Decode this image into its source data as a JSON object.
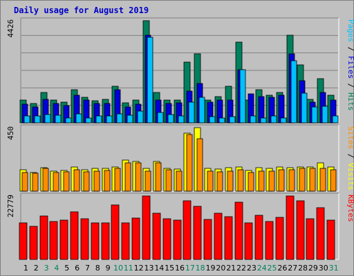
{
  "chart_data": [
    {
      "type": "bar",
      "title": "Daily usage for August 2019",
      "ymax_label": "4426",
      "ylim": [
        0,
        4426
      ],
      "right_label": [
        {
          "text": "Pages",
          "color": "#00c0ff"
        },
        {
          "text": " / ",
          "color": "#000000"
        },
        {
          "text": "Files",
          "color": "#0000d8"
        },
        {
          "text": " / ",
          "color": "#000000"
        },
        {
          "text": "Hits",
          "color": "#00805c"
        }
      ],
      "categories": [
        "1",
        "2",
        "3",
        "4",
        "5",
        "6",
        "7",
        "8",
        "9",
        "10",
        "11",
        "12",
        "13",
        "14",
        "15",
        "16",
        "17",
        "18",
        "19",
        "20",
        "21",
        "22",
        "23",
        "24",
        "25",
        "26",
        "27",
        "28",
        "29",
        "30",
        "31"
      ],
      "series": [
        {
          "name": "Hits",
          "color": "#00805c",
          "values": [
            1000,
            850,
            1320,
            1000,
            900,
            1430,
            1120,
            970,
            1020,
            1580,
            870,
            990,
            4426,
            1320,
            1000,
            1000,
            2620,
            3000,
            1000,
            1150,
            1590,
            3500,
            1000,
            1430,
            1200,
            1320,
            3800,
            2500,
            1020,
            1900,
            1200
          ]
        },
        {
          "name": "Files",
          "color": "#0000d8",
          "values": [
            800,
            700,
            1020,
            850,
            750,
            1200,
            1000,
            850,
            850,
            1450,
            700,
            800,
            3800,
            1000,
            850,
            870,
            1380,
            1700,
            900,
            1000,
            1000,
            2300,
            1250,
            1150,
            1100,
            1200,
            3000,
            1810,
            900,
            1320,
            1000
          ]
        },
        {
          "name": "Pages",
          "color": "#00c0ff",
          "values": [
            300,
            300,
            350,
            320,
            200,
            400,
            200,
            300,
            300,
            380,
            320,
            520,
            3700,
            450,
            350,
            300,
            900,
            1100,
            270,
            200,
            270,
            2300,
            300,
            200,
            300,
            200,
            2700,
            1300,
            700,
            730,
            300
          ]
        }
      ]
    },
    {
      "type": "bar",
      "ymax_label": "450",
      "ylim": [
        0,
        450
      ],
      "right_label": [
        {
          "text": "Sites",
          "color": "#ff8c00"
        },
        {
          "text": " / ",
          "color": "#000000"
        },
        {
          "text": "Visits",
          "color": "#ffff00"
        }
      ],
      "categories": [
        "1",
        "2",
        "3",
        "4",
        "5",
        "6",
        "7",
        "8",
        "9",
        "10",
        "11",
        "12",
        "13",
        "14",
        "15",
        "16",
        "17",
        "18",
        "19",
        "20",
        "21",
        "22",
        "23",
        "24",
        "25",
        "26",
        "27",
        "28",
        "29",
        "30",
        "31"
      ],
      "series": [
        {
          "name": "Visits",
          "color": "#ffff00",
          "values": [
            150,
            130,
            165,
            140,
            145,
            170,
            150,
            160,
            160,
            170,
            220,
            210,
            160,
            210,
            160,
            155,
            410,
            450,
            160,
            155,
            165,
            170,
            145,
            165,
            160,
            170,
            165,
            170,
            170,
            200,
            170
          ]
        },
        {
          "name": "Sites",
          "color": "#ff8c00",
          "values": [
            130,
            125,
            160,
            130,
            135,
            150,
            135,
            140,
            145,
            160,
            200,
            200,
            140,
            200,
            150,
            140,
            400,
            370,
            140,
            135,
            140,
            150,
            130,
            140,
            140,
            150,
            150,
            160,
            160,
            160,
            150
          ]
        }
      ]
    },
    {
      "type": "bar",
      "ymax_label": "22779",
      "ylim": [
        0,
        22779
      ],
      "right_label": [
        {
          "text": "KBytes",
          "color": "#ff0000"
        }
      ],
      "categories": [
        "1",
        "2",
        "3",
        "4",
        "5",
        "6",
        "7",
        "8",
        "9",
        "10",
        "11",
        "12",
        "13",
        "14",
        "15",
        "16",
        "17",
        "18",
        "19",
        "20",
        "21",
        "22",
        "23",
        "24",
        "25",
        "26",
        "27",
        "28",
        "29",
        "30",
        "31"
      ],
      "series": [
        {
          "name": "KBytes",
          "color": "#ff0000",
          "values": [
            13000,
            12000,
            15500,
            13500,
            14000,
            17000,
            14500,
            13000,
            13200,
            19500,
            13200,
            14800,
            22779,
            16500,
            14700,
            14000,
            21000,
            19000,
            14400,
            16500,
            15300,
            20500,
            13200,
            15800,
            13700,
            15000,
            22779,
            21000,
            14500,
            18500,
            14200
          ]
        }
      ]
    }
  ],
  "x_labels": [
    "1",
    "2",
    "3",
    "4",
    "5",
    "6",
    "7",
    "8",
    "9",
    "10",
    "11",
    "12",
    "13",
    "14",
    "15",
    "16",
    "17",
    "18",
    "19",
    "20",
    "21",
    "22",
    "23",
    "24",
    "25",
    "26",
    "27",
    "28",
    "29",
    "30",
    "31"
  ],
  "weekend_days": [
    "3",
    "4",
    "10",
    "11",
    "17",
    "18",
    "24",
    "25",
    "31"
  ],
  "colors": {
    "title": "#0000c8",
    "weekday": "#000000",
    "weekend": "#00805c",
    "panel": "#c0c0c0",
    "grid": "#808080"
  }
}
